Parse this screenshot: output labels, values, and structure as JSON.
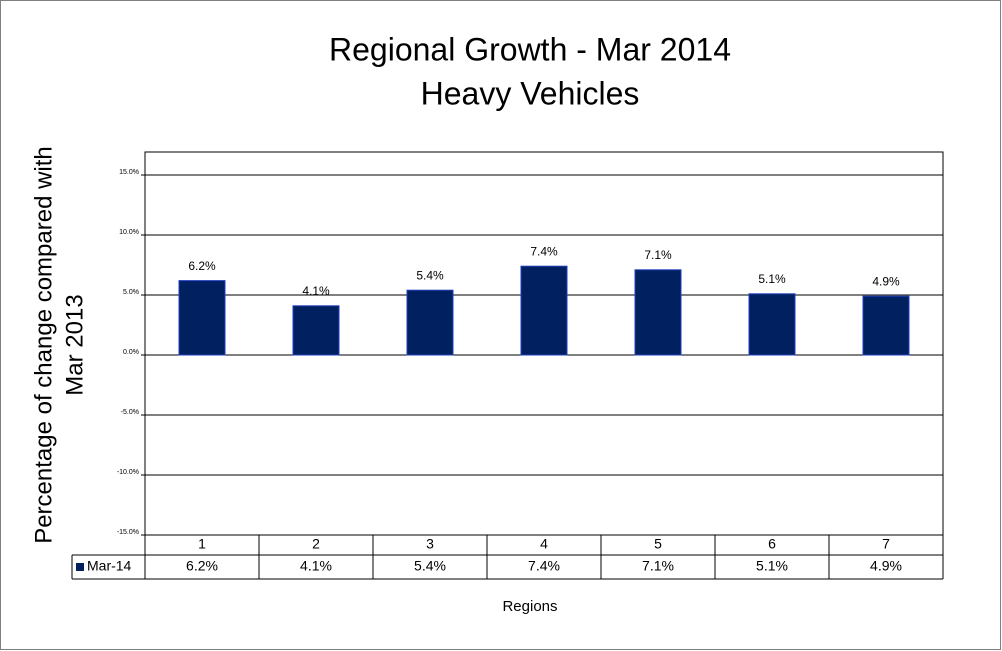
{
  "chart_data": {
    "type": "bar",
    "title": "Regional Growth - Mar 2014",
    "subtitle": "Heavy Vehicles",
    "y_label": [
      "Percentage of change compared with",
      "Mar 2013"
    ],
    "x_label": "Regions",
    "categories": [
      "1",
      "2",
      "3",
      "4",
      "5",
      "6",
      "7"
    ],
    "series": [
      {
        "name": "Mar-14",
        "color": "#002060",
        "values": [
          6.2,
          4.1,
          5.4,
          7.4,
          7.1,
          5.1,
          4.9
        ],
        "value_labels": [
          "6.2%",
          "4.1%",
          "5.4%",
          "7.4%",
          "7.1%",
          "5.1%",
          "4.9%"
        ]
      }
    ],
    "ylim": [
      -15,
      15
    ],
    "yticks": [
      {
        "value": -15,
        "label": "-15.0%"
      },
      {
        "value": -10,
        "label": "-10.0%"
      },
      {
        "value": -5,
        "label": "-5.0%"
      },
      {
        "value": 0,
        "label": "0.0%"
      },
      {
        "value": 5,
        "label": "5.0%"
      },
      {
        "value": 10,
        "label": "10.0%"
      },
      {
        "value": 15,
        "label": "15.0%"
      }
    ],
    "grid": true
  }
}
